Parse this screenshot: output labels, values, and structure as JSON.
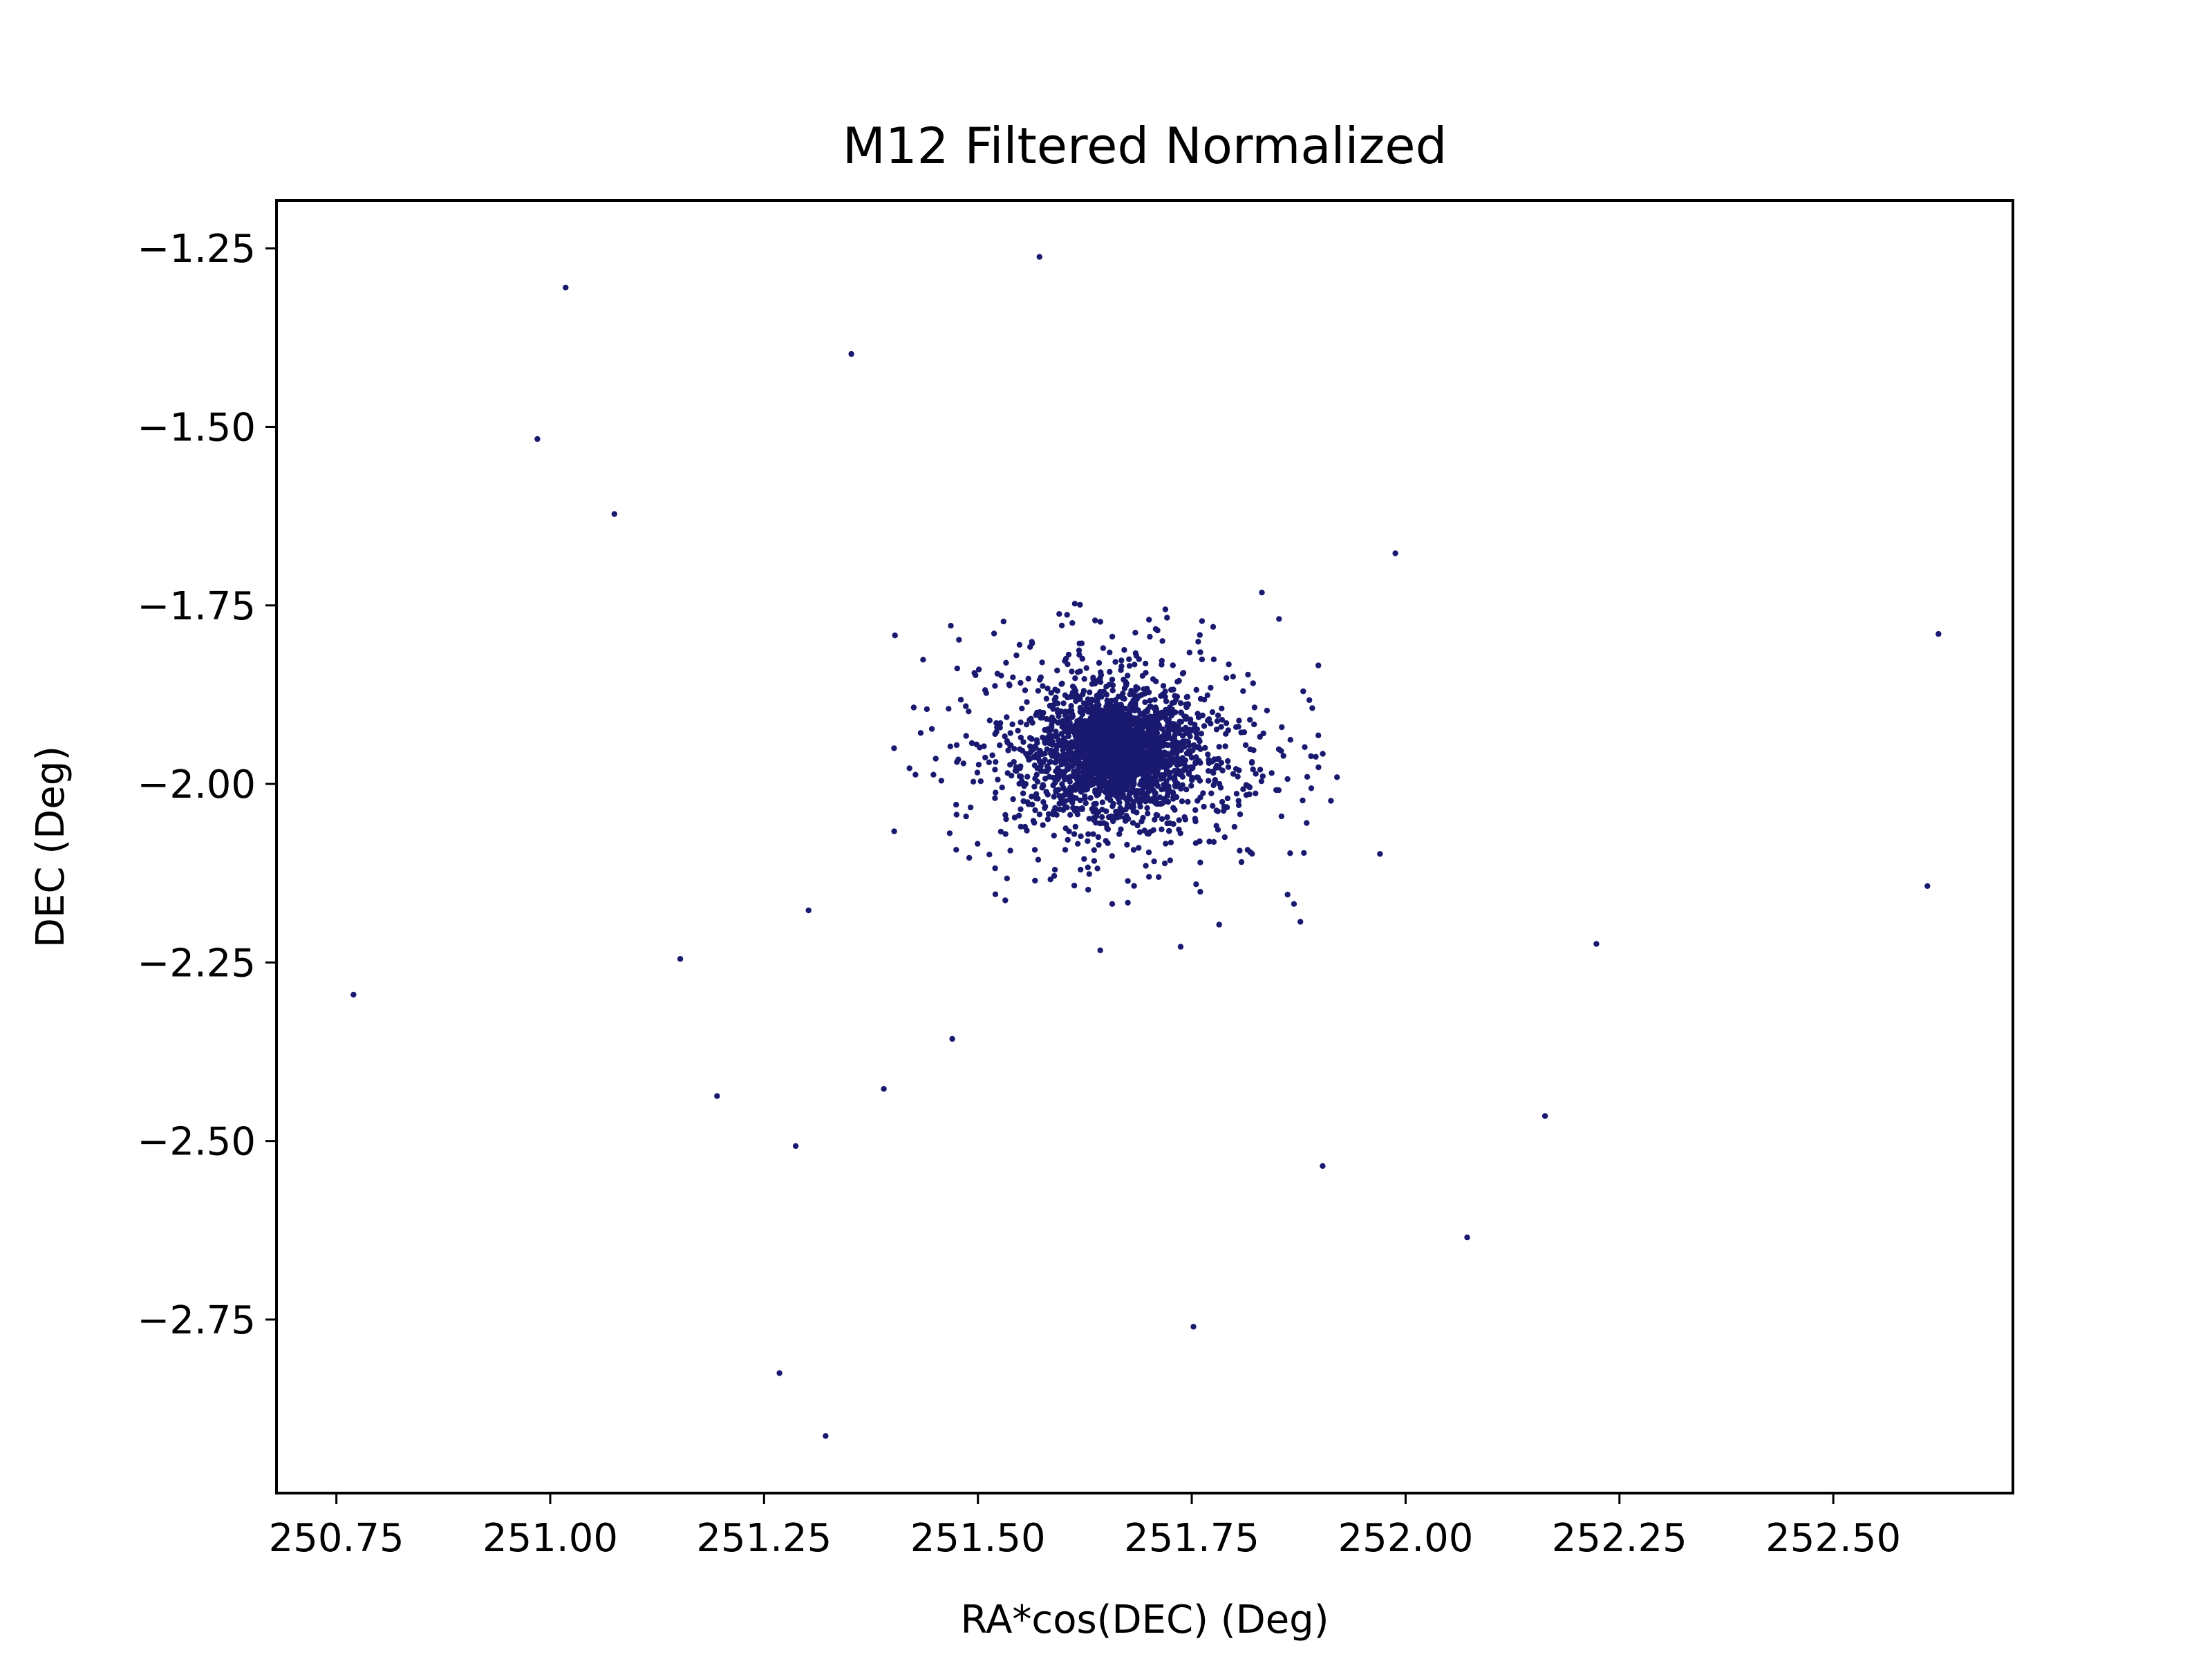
{
  "chart_data": {
    "type": "scatter",
    "title": "M12 Filtered Normalized",
    "xlabel": "RA*cos(DEC) (Deg)",
    "ylabel": "DEC (Deg)",
    "xlim": [
      250.68,
      252.71
    ],
    "ylim": [
      -2.993,
      -1.183
    ],
    "grid": false,
    "marker_color": "#191970",
    "x_ticks": [
      250.75,
      251.0,
      251.25,
      251.5,
      251.75,
      252.0,
      252.25,
      252.5
    ],
    "x_tick_labels": [
      "250.75",
      "251.00",
      "251.25",
      "251.50",
      "251.75",
      "252.00",
      "252.25",
      "252.50"
    ],
    "y_ticks": [
      -1.25,
      -1.5,
      -1.75,
      -2.0,
      -2.25,
      -2.5,
      -2.75
    ],
    "y_tick_labels": [
      "−1.25",
      "−1.50",
      "−1.75",
      "−2.00",
      "−2.25",
      "−2.50",
      "−2.75"
    ],
    "cluster_center": [
      251.66,
      -1.955
    ],
    "points": [
      [
        251.572,
        -1.262
      ],
      [
        251.018,
        -1.305
      ],
      [
        251.352,
        -1.398
      ],
      [
        250.985,
        -1.517
      ],
      [
        251.075,
        -1.622
      ],
      [
        251.988,
        -1.677
      ],
      [
        251.832,
        -1.732
      ],
      [
        251.852,
        -1.769
      ],
      [
        252.623,
        -1.79
      ],
      [
        251.403,
        -1.792
      ],
      [
        251.898,
        -1.834
      ],
      [
        251.425,
        -1.893
      ],
      [
        251.48,
        -1.882
      ],
      [
        251.402,
        -1.95
      ],
      [
        251.898,
        -1.932
      ],
      [
        251.895,
        -1.962
      ],
      [
        251.42,
        -1.978
      ],
      [
        251.427,
        -1.987
      ],
      [
        251.448,
        -1.987
      ],
      [
        251.885,
        -1.99
      ],
      [
        251.475,
        -2.043
      ],
      [
        251.467,
        -2.069
      ],
      [
        251.97,
        -2.098
      ],
      [
        251.865,
        -2.097
      ],
      [
        251.862,
        -2.155
      ],
      [
        251.877,
        -2.193
      ],
      [
        252.61,
        -2.143
      ],
      [
        252.223,
        -2.224
      ],
      [
        251.302,
        -2.177
      ],
      [
        251.152,
        -2.245
      ],
      [
        250.77,
        -2.295
      ],
      [
        251.47,
        -2.357
      ],
      [
        251.195,
        -2.437
      ],
      [
        251.39,
        -2.427
      ],
      [
        251.287,
        -2.507
      ],
      [
        252.163,
        -2.465
      ],
      [
        251.903,
        -2.535
      ],
      [
        252.072,
        -2.635
      ],
      [
        251.752,
        -2.76
      ],
      [
        251.268,
        -2.825
      ],
      [
        251.322,
        -2.913
      ],
      [
        251.532,
        -2.163
      ],
      [
        251.643,
        -2.233
      ],
      [
        251.737,
        -2.228
      ],
      [
        251.782,
        -2.197
      ],
      [
        251.657,
        -2.168
      ],
      [
        251.76,
        -2.151
      ],
      [
        251.595,
        -1.762
      ],
      [
        251.637,
        -1.771
      ],
      [
        251.762,
        -1.772
      ],
      [
        251.71,
        -1.785
      ],
      [
        251.775,
        -1.78
      ],
      [
        251.545,
        -1.82
      ],
      [
        251.537,
        -1.862
      ],
      [
        251.7,
        -1.77
      ],
      [
        251.52,
        -1.98
      ],
      [
        251.52,
        -2.02
      ],
      [
        251.555,
        -2.06
      ],
      [
        251.8,
        -2.06
      ],
      [
        251.81,
        -1.87
      ],
      [
        251.83,
        -1.98
      ],
      [
        251.62,
        -2.12
      ],
      [
        251.7,
        -2.13
      ],
      [
        251.76,
        -2.11
      ]
    ]
  }
}
